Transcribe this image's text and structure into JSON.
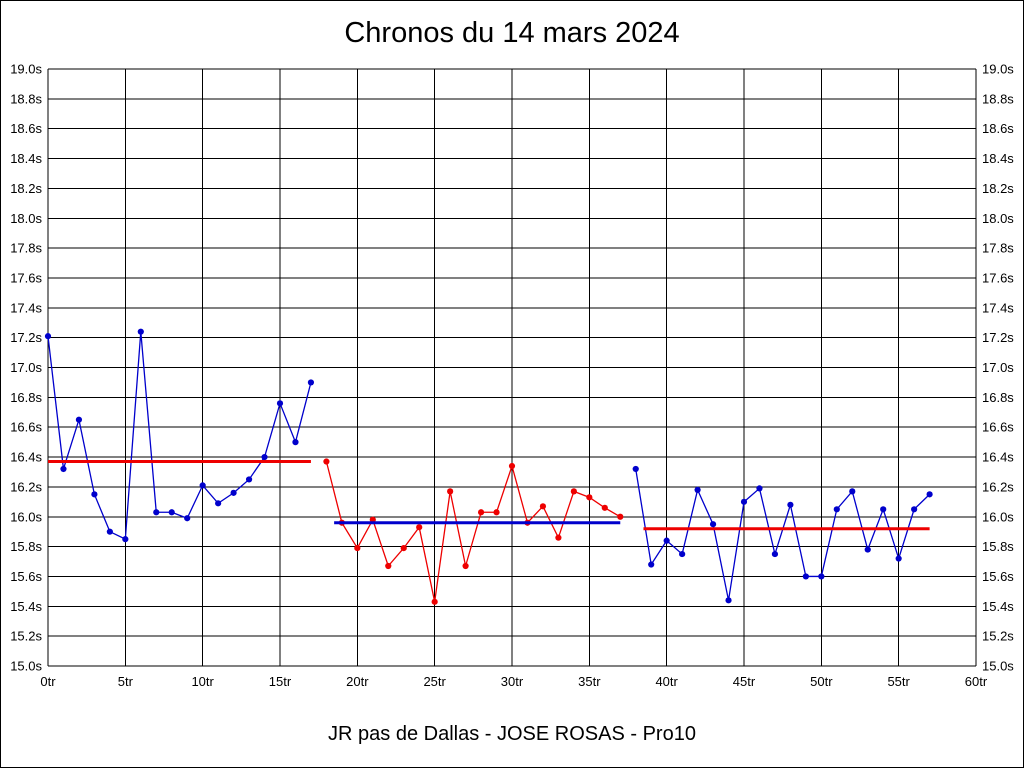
{
  "chart_data": {
    "type": "line",
    "title": "Chronos du 14 mars 2024",
    "footer_label": "JR pas de Dallas - JOSE ROSAS - Pro10",
    "xlim": [
      0,
      60
    ],
    "ylim": [
      15.0,
      19.0
    ],
    "grid": true,
    "legend": "none",
    "x_ticks": [
      0,
      5,
      10,
      15,
      20,
      25,
      30,
      35,
      40,
      45,
      50,
      55,
      60
    ],
    "x_tick_labels": [
      "0tr",
      "5tr",
      "10tr",
      "15tr",
      "20tr",
      "25tr",
      "30tr",
      "35tr",
      "40tr",
      "45tr",
      "50tr",
      "55tr",
      "60tr"
    ],
    "y_ticks": [
      19.0,
      18.8,
      18.6,
      18.4,
      18.2,
      18.0,
      17.8,
      17.6,
      17.4,
      17.2,
      17.0,
      16.8,
      16.6,
      16.4,
      16.2,
      16.0,
      15.8,
      15.6,
      15.4,
      15.2,
      15.0
    ],
    "y_tick_labels": [
      "19.0s",
      "18.8s",
      "18.6s",
      "18.4s",
      "18.2s",
      "18.0s",
      "17.8s",
      "17.6s",
      "17.4s",
      "17.2s",
      "17.0s",
      "16.8s",
      "16.6s",
      "16.4s",
      "16.2s",
      "16.0s",
      "15.8s",
      "15.6s",
      "15.4s",
      "15.2s",
      "15.0s"
    ],
    "colors": {
      "blue": "#0000cc",
      "red": "#ee0000"
    },
    "series": [
      {
        "name": "laps-segment-1",
        "color": "#0000cc",
        "start_x": 0,
        "values": [
          17.21,
          16.32,
          16.65,
          16.15,
          15.9,
          15.85,
          17.24,
          16.03,
          16.03,
          15.99,
          16.21,
          16.09,
          16.16,
          16.25,
          16.4,
          16.76,
          16.5,
          16.9
        ]
      },
      {
        "name": "laps-segment-2",
        "color": "#ee0000",
        "start_x": 18,
        "values": [
          16.37,
          15.96,
          15.79,
          15.98,
          15.67,
          15.79,
          15.93,
          15.43,
          16.17,
          15.67,
          16.03,
          16.03,
          16.34,
          15.96,
          16.07,
          15.86,
          16.17,
          16.13,
          16.06,
          16.0
        ]
      },
      {
        "name": "laps-segment-3",
        "color": "#0000cc",
        "start_x": 38,
        "values": [
          16.32,
          15.68,
          15.84,
          15.75,
          16.18,
          15.95,
          15.44,
          16.1,
          16.19,
          15.75,
          16.08,
          15.6,
          15.6,
          16.05,
          16.17,
          15.78,
          16.05,
          15.72,
          16.05,
          16.15
        ]
      }
    ],
    "average_lines": [
      {
        "name": "average-segment-1",
        "color": "#ee0000",
        "y": 16.37,
        "x_start": 0,
        "x_end": 17
      },
      {
        "name": "average-segment-2",
        "color": "#0000cc",
        "y": 15.96,
        "x_start": 18.5,
        "x_end": 37
      },
      {
        "name": "average-segment-3",
        "color": "#ee0000",
        "y": 15.92,
        "x_start": 38.5,
        "x_end": 57
      }
    ]
  }
}
